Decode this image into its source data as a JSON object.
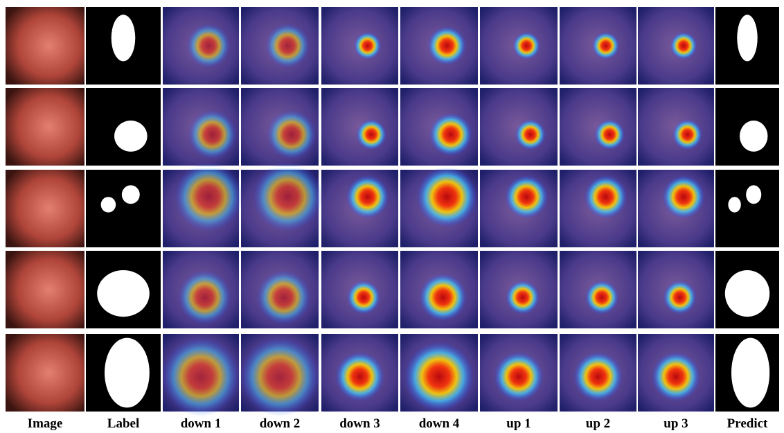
{
  "figure": {
    "column_labels": [
      "Image",
      "Label",
      "down 1",
      "down 2",
      "down 3",
      "down 4",
      "up 1",
      "up 2",
      "up 3",
      "Predict"
    ]
  }
}
